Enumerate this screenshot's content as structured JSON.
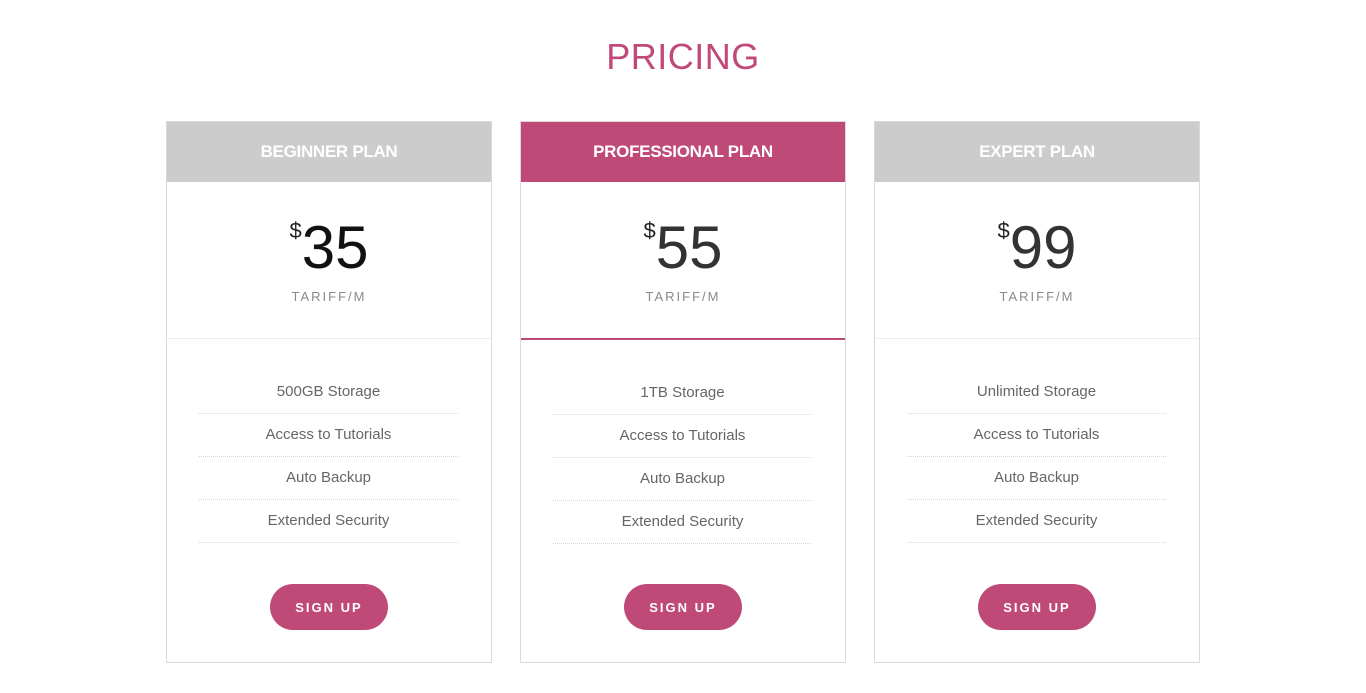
{
  "section_title": "PRICING",
  "accent_color": "#bf4a78",
  "plans": [
    {
      "name": "BEGINNER PLAN",
      "currency": "$",
      "price": "35",
      "period": "TARIFF/M",
      "featured": false,
      "features": [
        "500GB Storage",
        "Access to Tutorials",
        "Auto Backup",
        "Extended Security"
      ],
      "cta": "SIGN UP"
    },
    {
      "name": "PROFESSIONAL PLAN",
      "currency": "$",
      "price": "55",
      "period": "TARIFF/M",
      "featured": true,
      "features": [
        "1TB Storage",
        "Access to Tutorials",
        "Auto Backup",
        "Extended Security"
      ],
      "cta": "SIGN UP"
    },
    {
      "name": "EXPERT PLAN",
      "currency": "$",
      "price": "99",
      "period": "TARIFF/M",
      "featured": false,
      "features": [
        "Unlimited Storage",
        "Access to Tutorials",
        "Auto Backup",
        "Extended Security"
      ],
      "cta": "SIGN UP"
    }
  ]
}
